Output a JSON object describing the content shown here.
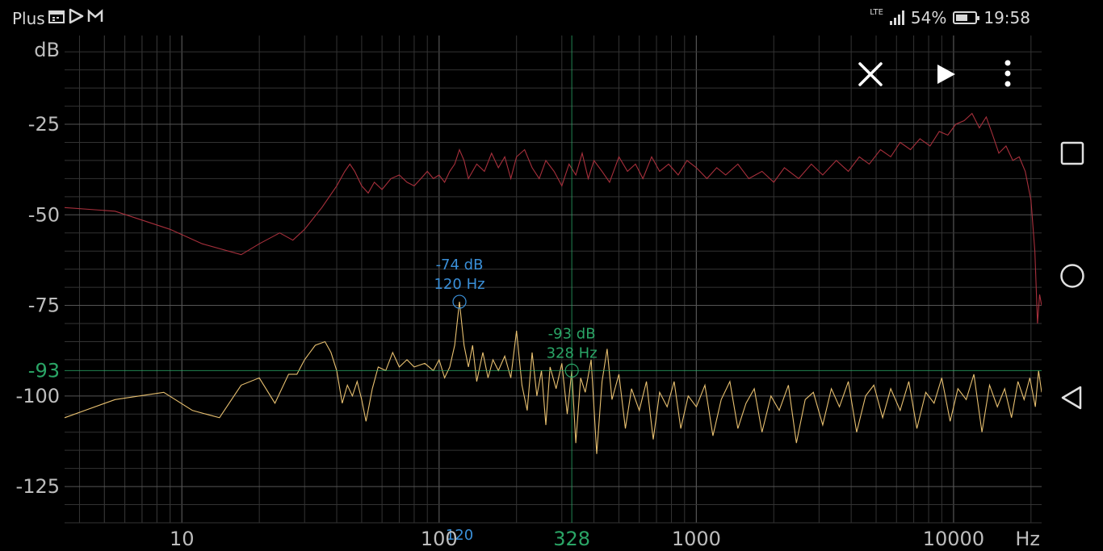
{
  "status_bar": {
    "carrier": "Plus",
    "left_icons": [
      "calendar-icon",
      "play-store-icon",
      "gmail-icon"
    ],
    "network": "LTE",
    "battery": "54%",
    "battery_level": 0.54,
    "time": "19:58"
  },
  "toolbar": {
    "close_icon": "close-icon",
    "play_icon": "play-icon",
    "menu_icon": "more-vert-icon"
  },
  "chart_data": {
    "type": "line",
    "xscale": "log",
    "xlim": [
      3.5,
      22000
    ],
    "ylim": [
      -135,
      -0.5
    ],
    "grid": true,
    "xlabel": "Hz",
    "ylabel": "dB",
    "x_ticks": [
      "10",
      "100",
      "1000",
      "10000"
    ],
    "y_ticks": [
      "-25",
      "-50",
      "-75",
      "-100",
      "-125"
    ],
    "series": [
      {
        "color": "#a8303c",
        "points": [
          [
            3.5,
            -48
          ],
          [
            5.5,
            -49
          ],
          [
            9,
            -54
          ],
          [
            12,
            -58
          ],
          [
            17,
            -61
          ],
          [
            20,
            -58
          ],
          [
            24,
            -55
          ],
          [
            27,
            -57
          ],
          [
            30,
            -54
          ],
          [
            35,
            -48
          ],
          [
            40,
            -42
          ],
          [
            43,
            -38
          ],
          [
            45,
            -36
          ],
          [
            47,
            -38
          ],
          [
            50,
            -42
          ],
          [
            53,
            -44
          ],
          [
            56,
            -41
          ],
          [
            60,
            -43
          ],
          [
            65,
            -40
          ],
          [
            70,
            -39
          ],
          [
            75,
            -41
          ],
          [
            80,
            -42
          ],
          [
            85,
            -40
          ],
          [
            90,
            -38
          ],
          [
            95,
            -40
          ],
          [
            100,
            -39
          ],
          [
            105,
            -41
          ],
          [
            110,
            -38
          ],
          [
            115,
            -36
          ],
          [
            120,
            -32
          ],
          [
            125,
            -35
          ],
          [
            130,
            -40
          ],
          [
            140,
            -36
          ],
          [
            150,
            -38
          ],
          [
            160,
            -33
          ],
          [
            170,
            -37
          ],
          [
            180,
            -34
          ],
          [
            190,
            -40
          ],
          [
            200,
            -34
          ],
          [
            215,
            -32
          ],
          [
            230,
            -37
          ],
          [
            245,
            -40
          ],
          [
            260,
            -35
          ],
          [
            280,
            -38
          ],
          [
            300,
            -42
          ],
          [
            320,
            -36
          ],
          [
            340,
            -39
          ],
          [
            360,
            -33
          ],
          [
            380,
            -40
          ],
          [
            400,
            -35
          ],
          [
            430,
            -38
          ],
          [
            460,
            -41
          ],
          [
            500,
            -34
          ],
          [
            540,
            -38
          ],
          [
            580,
            -36
          ],
          [
            620,
            -40
          ],
          [
            670,
            -34
          ],
          [
            720,
            -38
          ],
          [
            780,
            -36
          ],
          [
            850,
            -39
          ],
          [
            920,
            -35
          ],
          [
            1000,
            -37
          ],
          [
            1100,
            -40
          ],
          [
            1200,
            -37
          ],
          [
            1300,
            -39
          ],
          [
            1450,
            -36
          ],
          [
            1600,
            -40
          ],
          [
            1800,
            -38
          ],
          [
            2000,
            -41
          ],
          [
            2200,
            -37
          ],
          [
            2500,
            -40
          ],
          [
            2800,
            -36
          ],
          [
            3100,
            -39
          ],
          [
            3500,
            -35
          ],
          [
            3900,
            -38
          ],
          [
            4300,
            -34
          ],
          [
            4700,
            -36
          ],
          [
            5200,
            -32
          ],
          [
            5700,
            -34
          ],
          [
            6200,
            -30
          ],
          [
            6800,
            -32
          ],
          [
            7400,
            -29
          ],
          [
            8100,
            -31
          ],
          [
            8800,
            -27
          ],
          [
            9500,
            -28
          ],
          [
            10200,
            -25
          ],
          [
            11000,
            -24
          ],
          [
            11800,
            -22
          ],
          [
            12600,
            -26
          ],
          [
            13400,
            -23
          ],
          [
            14200,
            -28
          ],
          [
            15000,
            -33
          ],
          [
            16000,
            -31
          ],
          [
            17000,
            -35
          ],
          [
            18000,
            -34
          ],
          [
            19000,
            -38
          ],
          [
            20000,
            -46
          ],
          [
            20700,
            -60
          ],
          [
            21200,
            -80
          ],
          [
            21600,
            -72
          ],
          [
            22000,
            -75
          ]
        ]
      },
      {
        "color": "#e8c070",
        "points": [
          [
            3.5,
            -106
          ],
          [
            5.5,
            -101
          ],
          [
            8.5,
            -99
          ],
          [
            11,
            -104
          ],
          [
            14,
            -106
          ],
          [
            17,
            -97
          ],
          [
            20,
            -95
          ],
          [
            23,
            -102
          ],
          [
            26,
            -94
          ],
          [
            28,
            -94
          ],
          [
            30,
            -90
          ],
          [
            33,
            -86
          ],
          [
            36,
            -85
          ],
          [
            38,
            -88
          ],
          [
            40,
            -93
          ],
          [
            42,
            -102
          ],
          [
            44,
            -97
          ],
          [
            46,
            -100
          ],
          [
            48,
            -96
          ],
          [
            50,
            -101
          ],
          [
            52,
            -107
          ],
          [
            55,
            -98
          ],
          [
            58,
            -92
          ],
          [
            62,
            -93
          ],
          [
            66,
            -88
          ],
          [
            70,
            -92
          ],
          [
            75,
            -90
          ],
          [
            80,
            -92
          ],
          [
            88,
            -91
          ],
          [
            95,
            -93
          ],
          [
            100,
            -90
          ],
          [
            105,
            -95
          ],
          [
            110,
            -92
          ],
          [
            115,
            -86
          ],
          [
            120,
            -74
          ],
          [
            125,
            -86
          ],
          [
            130,
            -92
          ],
          [
            135,
            -86
          ],
          [
            140,
            -96
          ],
          [
            148,
            -88
          ],
          [
            155,
            -95
          ],
          [
            162,
            -90
          ],
          [
            170,
            -93
          ],
          [
            180,
            -89
          ],
          [
            190,
            -95
          ],
          [
            200,
            -82
          ],
          [
            210,
            -97
          ],
          [
            220,
            -104
          ],
          [
            230,
            -88
          ],
          [
            240,
            -100
          ],
          [
            250,
            -93
          ],
          [
            260,
            -108
          ],
          [
            270,
            -92
          ],
          [
            285,
            -98
          ],
          [
            300,
            -91
          ],
          [
            315,
            -105
          ],
          [
            328,
            -93
          ],
          [
            340,
            -113
          ],
          [
            355,
            -95
          ],
          [
            370,
            -99
          ],
          [
            390,
            -90
          ],
          [
            410,
            -116
          ],
          [
            430,
            -96
          ],
          [
            450,
            -87
          ],
          [
            470,
            -101
          ],
          [
            500,
            -94
          ],
          [
            530,
            -109
          ],
          [
            560,
            -98
          ],
          [
            600,
            -104
          ],
          [
            640,
            -96
          ],
          [
            680,
            -112
          ],
          [
            720,
            -99
          ],
          [
            770,
            -103
          ],
          [
            820,
            -96
          ],
          [
            870,
            -109
          ],
          [
            930,
            -100
          ],
          [
            1000,
            -103
          ],
          [
            1080,
            -97
          ],
          [
            1160,
            -111
          ],
          [
            1250,
            -101
          ],
          [
            1350,
            -96
          ],
          [
            1450,
            -109
          ],
          [
            1560,
            -102
          ],
          [
            1680,
            -98
          ],
          [
            1800,
            -110
          ],
          [
            1950,
            -100
          ],
          [
            2100,
            -104
          ],
          [
            2280,
            -97
          ],
          [
            2450,
            -113
          ],
          [
            2650,
            -101
          ],
          [
            2850,
            -99
          ],
          [
            3100,
            -108
          ],
          [
            3350,
            -98
          ],
          [
            3600,
            -103
          ],
          [
            3900,
            -96
          ],
          [
            4200,
            -110
          ],
          [
            4550,
            -100
          ],
          [
            4900,
            -97
          ],
          [
            5300,
            -106
          ],
          [
            5700,
            -98
          ],
          [
            6200,
            -104
          ],
          [
            6700,
            -96
          ],
          [
            7200,
            -109
          ],
          [
            7800,
            -99
          ],
          [
            8400,
            -102
          ],
          [
            9000,
            -95
          ],
          [
            9700,
            -107
          ],
          [
            10400,
            -98
          ],
          [
            11200,
            -101
          ],
          [
            12000,
            -94
          ],
          [
            12900,
            -110
          ],
          [
            13800,
            -97
          ],
          [
            14800,
            -103
          ],
          [
            15800,
            -98
          ],
          [
            16800,
            -106
          ],
          [
            17800,
            -96
          ],
          [
            18800,
            -101
          ],
          [
            19800,
            -95
          ],
          [
            20800,
            -103
          ],
          [
            21400,
            -93
          ],
          [
            22000,
            -99
          ]
        ]
      }
    ],
    "markers": [
      {
        "color": "#3a8fd8",
        "db_label": "-74 dB",
        "hz_label": "120 Hz",
        "x": 120,
        "y": -74,
        "axis_label": "120"
      },
      {
        "color": "#2aa566",
        "db_label": "-93 dB",
        "hz_label": "328 Hz",
        "x": 328,
        "y": -93,
        "axis_label": "328",
        "y_axis_label": "-93"
      }
    ]
  },
  "colors": {
    "grid": "#333333",
    "grid_major": "#555555",
    "axis_text": "#bdbdbd",
    "peak_marker": "#3a8fd8",
    "cursor_marker": "#2aa566"
  }
}
